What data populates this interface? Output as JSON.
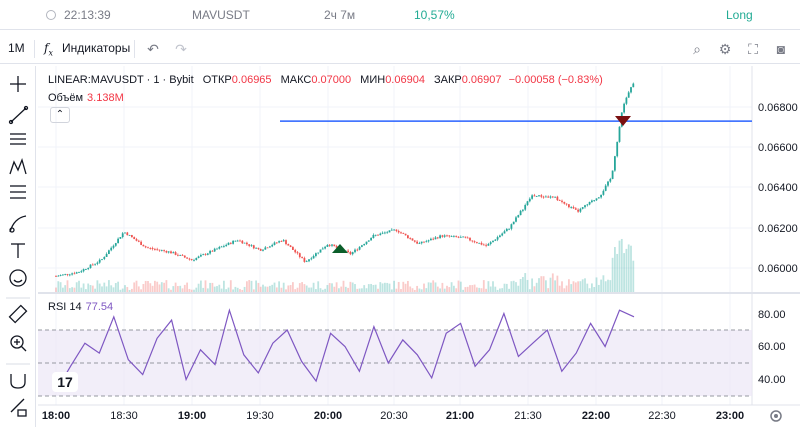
{
  "infobar": {
    "time": "22:13:39",
    "symbol": "MAVUSDT",
    "duration": "2ч 7м",
    "percent": "10,57%",
    "side": "Long"
  },
  "toolbar": {
    "interval": "1M",
    "indicators_label": "Индикаторы"
  },
  "legend": {
    "symbol": "LINEAR:MAVUSDT · 1 · Bybit",
    "open_label": "ОТКР",
    "open": "0.06965",
    "high_label": "МАКС",
    "high": "0.07000",
    "low_label": "МИН",
    "low": "0.06904",
    "close_label": "ЗАКР",
    "close": "0.06907",
    "change": "−0.00058 (−0.83%)",
    "volume_label": "Объём",
    "volume": "3.138M",
    "rsi_label": "RSI 14",
    "rsi": "77.54"
  },
  "colors": {
    "up": "#26a69a",
    "down": "#ef5350",
    "rsi": "#7e57c2",
    "hline": "#2962ff"
  },
  "chart_data": [
    {
      "type": "candlestick",
      "price_axis_ticks": [
        "0.06800",
        "0.06600",
        "0.06400",
        "0.06200",
        "0.06000"
      ],
      "time_axis_ticks": [
        "18:00",
        "18:30",
        "19:00",
        "19:30",
        "20:00",
        "20:30",
        "21:00",
        "21:30",
        "22:00",
        "22:30",
        "23:00"
      ],
      "horizontal_line": 0.0673,
      "markers": [
        {
          "kind": "buy-arrow",
          "time": "20:10"
        },
        {
          "kind": "sell-arrow",
          "time": "22:11"
        }
      ],
      "close_path": [
        [
          "18:00",
          0.0596
        ],
        [
          "18:10",
          0.0598
        ],
        [
          "18:20",
          0.0604
        ],
        [
          "18:30",
          0.0618
        ],
        [
          "18:40",
          0.061
        ],
        [
          "18:50",
          0.0608
        ],
        [
          "19:00",
          0.0604
        ],
        [
          "19:10",
          0.0609
        ],
        [
          "19:20",
          0.0614
        ],
        [
          "19:30",
          0.0609
        ],
        [
          "19:40",
          0.0614
        ],
        [
          "19:50",
          0.0603
        ],
        [
          "20:00",
          0.0612
        ],
        [
          "20:10",
          0.0607
        ],
        [
          "20:20",
          0.0616
        ],
        [
          "20:30",
          0.0619
        ],
        [
          "20:40",
          0.0612
        ],
        [
          "20:50",
          0.0616
        ],
        [
          "21:00",
          0.0615
        ],
        [
          "21:10",
          0.0611
        ],
        [
          "21:20",
          0.062
        ],
        [
          "21:30",
          0.0636
        ],
        [
          "21:40",
          0.0635
        ],
        [
          "21:50",
          0.0628
        ],
        [
          "22:00",
          0.0636
        ],
        [
          "22:05",
          0.0645
        ],
        [
          "22:10",
          0.068
        ],
        [
          "22:15",
          0.0693
        ]
      ]
    },
    {
      "type": "line",
      "name": "RSI 14",
      "y_axis_ticks": [
        "80.00",
        "60.00",
        "40.00"
      ],
      "bands": [
        70,
        50,
        30
      ],
      "values": [
        33,
        48,
        62,
        56,
        78,
        52,
        43,
        65,
        76,
        40,
        58,
        49,
        82,
        55,
        44,
        62,
        70,
        51,
        39,
        68,
        60,
        45,
        72,
        50,
        64,
        55,
        41,
        68,
        74,
        48,
        58,
        80,
        54,
        62,
        70,
        45,
        56,
        74,
        60,
        82,
        78
      ]
    }
  ]
}
